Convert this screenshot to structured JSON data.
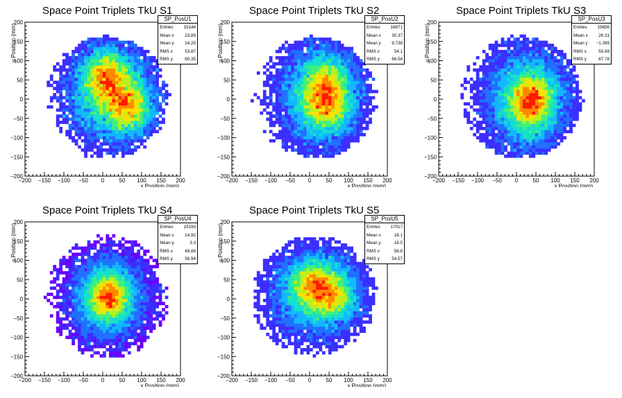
{
  "chart_data": [
    {
      "type": "heatmap",
      "title": "Space Point Triplets TkU S1",
      "xlabel": "x Position (mm)",
      "ylabel": "y Position (mm)",
      "xlim": [
        -200,
        200
      ],
      "ylim": [
        -200,
        200
      ],
      "x_ticks": [
        "−200",
        "−150",
        "−100",
        "−50",
        "0",
        "50",
        "100",
        "150",
        "200"
      ],
      "y_ticks": [
        "200",
        "150",
        "100",
        "50",
        "0",
        "−50",
        "−100",
        "−150",
        "−200"
      ],
      "stats": {
        "name": "SP_PosU1",
        "rows": [
          {
            "label": "Entries",
            "value": "15144"
          },
          {
            "label": "Mean x",
            "value": "23.89"
          },
          {
            "label": "Mean y",
            "value": "14.25"
          },
          {
            "label": "RMS x",
            "value": "53.87"
          },
          {
            "label": "RMS y",
            "value": "60.35"
          }
        ]
      },
      "hotspots": [
        [
          8,
          60
        ],
        [
          65,
          -20
        ]
      ],
      "grid": false,
      "legend": "top-right"
    },
    {
      "type": "heatmap",
      "title": "Space Point Triplets TkU S2",
      "xlabel": "x Position (mm)",
      "ylabel": "y Position (mm)",
      "xlim": [
        -200,
        200
      ],
      "ylim": [
        -200,
        200
      ],
      "x_ticks": [
        "−200",
        "−150",
        "−100",
        "−50",
        "0",
        "50",
        "100",
        "150",
        "200"
      ],
      "y_ticks": [
        "200",
        "150",
        "100",
        "50",
        "0",
        "−50",
        "−100",
        "−150",
        "−200"
      ],
      "stats": {
        "name": "SP_PosU2",
        "rows": [
          {
            "label": "Entries",
            "value": "16671"
          },
          {
            "label": "Mean x",
            "value": "30.37"
          },
          {
            "label": "Mean y",
            "value": "9.738"
          },
          {
            "label": "RMS x",
            "value": "54.1"
          },
          {
            "label": "RMS y",
            "value": "66.54"
          }
        ]
      },
      "hotspots": [
        [
          40,
          35
        ],
        [
          45,
          -15
        ]
      ],
      "grid": false,
      "legend": "top-right"
    },
    {
      "type": "heatmap",
      "title": "Space Point Triplets TkU S3",
      "xlabel": "x Position (mm)",
      "ylabel": "y Position (mm)",
      "xlim": [
        -200,
        200
      ],
      "ylim": [
        -200,
        200
      ],
      "x_ticks": [
        "−200",
        "−150",
        "−100",
        "−50",
        "0",
        "50",
        "100",
        "150",
        "200"
      ],
      "y_ticks": [
        "200",
        "150",
        "100",
        "50",
        "0",
        "−50",
        "−100",
        "−150",
        "−200"
      ],
      "stats": {
        "name": "SP_PosU3",
        "rows": [
          {
            "label": "Entries",
            "value": "15656"
          },
          {
            "label": "Mean x",
            "value": "26.31"
          },
          {
            "label": "Mean y",
            "value": "−1.269"
          },
          {
            "label": "RMS x",
            "value": "55.69"
          },
          {
            "label": "RMS y",
            "value": "67.78"
          }
        ]
      },
      "hotspots": [
        [
          40,
          10
        ],
        [
          35,
          -20
        ]
      ],
      "grid": false,
      "legend": "top-right"
    },
    {
      "type": "heatmap",
      "title": "Space Point Triplets TkU S4",
      "xlabel": "x Position (mm)",
      "ylabel": "y Position (mm)",
      "xlim": [
        -200,
        200
      ],
      "ylim": [
        -200,
        200
      ],
      "x_ticks": [
        "−200",
        "−150",
        "−100",
        "−50",
        "0",
        "50",
        "100",
        "150",
        "200"
      ],
      "y_ticks": [
        "200",
        "150",
        "100",
        "50",
        "0",
        "−50",
        "−100",
        "−150",
        "−200"
      ],
      "stats": {
        "name": "SP_PosU4",
        "rows": [
          {
            "label": "Entries",
            "value": "15193"
          },
          {
            "label": "Mean x",
            "value": "14.92"
          },
          {
            "label": "Mean y",
            "value": "3.3"
          },
          {
            "label": "RMS x",
            "value": "49.88"
          },
          {
            "label": "RMS y",
            "value": "56.94"
          }
        ]
      },
      "hotspots": [
        [
          15,
          5
        ]
      ],
      "grid": false,
      "legend": "top-right"
    },
    {
      "type": "heatmap",
      "title": "Space Point Triplets TkU S5",
      "xlabel": "x Position (mm)",
      "ylabel": "y Position (mm)",
      "xlim": [
        -200,
        200
      ],
      "ylim": [
        -200,
        200
      ],
      "x_ticks": [
        "−200",
        "−150",
        "−100",
        "−50",
        "0",
        "50",
        "100",
        "150",
        "200"
      ],
      "y_ticks": [
        "200",
        "150",
        "100",
        "50",
        "0",
        "−50",
        "−100",
        "−150",
        "−200"
      ],
      "stats": {
        "name": "SP_PosU5",
        "rows": [
          {
            "label": "Entries",
            "value": "17017"
          },
          {
            "label": "Mean x",
            "value": "18.1"
          },
          {
            "label": "Mean y",
            "value": "16.5"
          },
          {
            "label": "RMS x",
            "value": "56.8"
          },
          {
            "label": "RMS y",
            "value": "54.57"
          }
        ]
      },
      "hotspots": [
        [
          10,
          40
        ],
        [
          55,
          5
        ]
      ],
      "grid": false,
      "legend": "top-right"
    }
  ],
  "palette": [
    "#6a00ff",
    "#3b2fff",
    "#2070ff",
    "#12b8ff",
    "#16e0c8",
    "#3ff07a",
    "#b8f020",
    "#ffe000",
    "#ff8800",
    "#ff1a00"
  ]
}
